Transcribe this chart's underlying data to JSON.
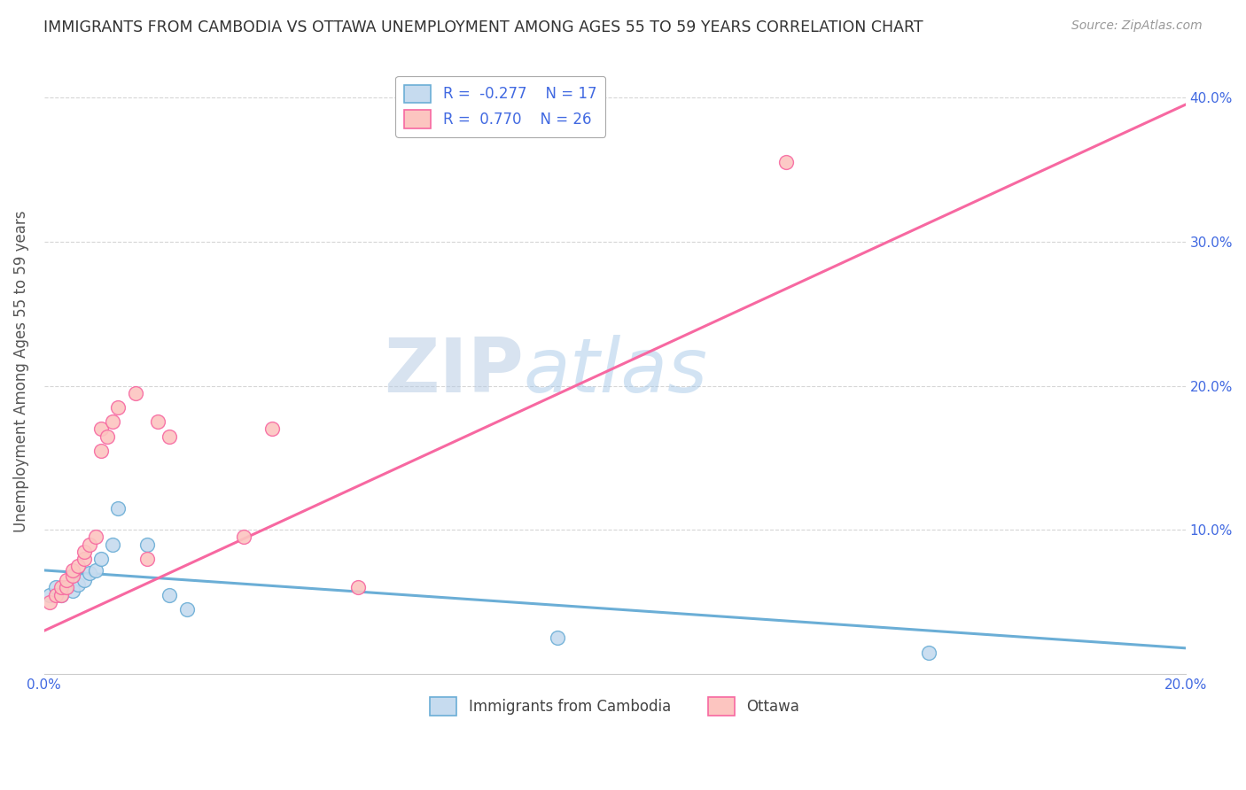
{
  "title": "IMMIGRANTS FROM CAMBODIA VS OTTAWA UNEMPLOYMENT AMONG AGES 55 TO 59 YEARS CORRELATION CHART",
  "source": "Source: ZipAtlas.com",
  "ylabel": "Unemployment Among Ages 55 to 59 years",
  "xlim": [
    0.0,
    0.2
  ],
  "ylim": [
    0.0,
    0.42
  ],
  "xticks": [
    0.0,
    0.05,
    0.1,
    0.15,
    0.2
  ],
  "yticks": [
    0.1,
    0.2,
    0.3,
    0.4
  ],
  "blue_scatter_x": [
    0.001,
    0.002,
    0.003,
    0.004,
    0.005,
    0.006,
    0.007,
    0.008,
    0.009,
    0.01,
    0.012,
    0.013,
    0.018,
    0.022,
    0.025,
    0.09,
    0.155
  ],
  "blue_scatter_y": [
    0.055,
    0.06,
    0.055,
    0.06,
    0.058,
    0.062,
    0.065,
    0.07,
    0.072,
    0.08,
    0.09,
    0.115,
    0.09,
    0.055,
    0.045,
    0.025,
    0.015
  ],
  "pink_scatter_x": [
    0.001,
    0.002,
    0.003,
    0.003,
    0.004,
    0.004,
    0.005,
    0.005,
    0.006,
    0.007,
    0.007,
    0.008,
    0.009,
    0.01,
    0.01,
    0.011,
    0.012,
    0.013,
    0.016,
    0.018,
    0.02,
    0.022,
    0.035,
    0.04,
    0.055,
    0.13
  ],
  "pink_scatter_y": [
    0.05,
    0.055,
    0.055,
    0.06,
    0.06,
    0.065,
    0.068,
    0.072,
    0.075,
    0.08,
    0.085,
    0.09,
    0.095,
    0.155,
    0.17,
    0.165,
    0.175,
    0.185,
    0.195,
    0.08,
    0.175,
    0.165,
    0.095,
    0.17,
    0.06,
    0.355
  ],
  "blue_R": -0.277,
  "blue_N": 17,
  "pink_R": 0.77,
  "pink_N": 26,
  "blue_line_x": [
    0.0,
    0.2
  ],
  "blue_line_y": [
    0.072,
    0.018
  ],
  "pink_line_x": [
    0.0,
    0.2
  ],
  "pink_line_y": [
    0.03,
    0.395
  ],
  "blue_color": "#6baed6",
  "blue_fill": "#c6dbef",
  "pink_color": "#f768a1",
  "pink_fill": "#fcc5c0",
  "watermark_zip": "ZIP",
  "watermark_atlas": "atlas",
  "bg_color": "#ffffff",
  "grid_color": "#cccccc",
  "legend_R_color": "#4169e1",
  "title_color": "#333333",
  "source_color": "#999999",
  "axis_label_color": "#555555",
  "tick_color": "#4169e1"
}
